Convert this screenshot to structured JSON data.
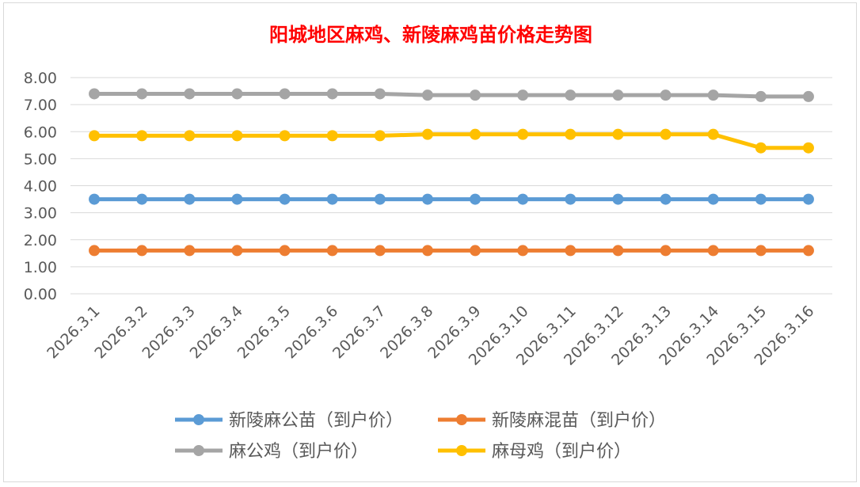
{
  "chart_data": {
    "type": "line",
    "title": "阳城地区麻鸡、新陵麻鸡苗价格走势图",
    "title_color": "#ff0000",
    "xlabel": "",
    "ylabel": "",
    "ylim": [
      0,
      8
    ],
    "y_ticks": [
      "0.00",
      "1.00",
      "2.00",
      "3.00",
      "4.00",
      "5.00",
      "6.00",
      "7.00",
      "8.00"
    ],
    "grid": true,
    "legend_position": "bottom",
    "categories": [
      "2026.3.1",
      "2026.3.2",
      "2026.3.3",
      "2026.3.4",
      "2026.3.5",
      "2026.3.6",
      "2026.3.7",
      "2026.3.8",
      "2026.3.9",
      "2026.3.10",
      "2026.3.11",
      "2026.3.12",
      "2026.3.13",
      "2026.3.14",
      "2026.3.15",
      "2026.3.16"
    ],
    "series": [
      {
        "name": "新陵麻公苗（到户价）",
        "color": "#5b9bd5",
        "values": [
          3.5,
          3.5,
          3.5,
          3.5,
          3.5,
          3.5,
          3.5,
          3.5,
          3.5,
          3.5,
          3.5,
          3.5,
          3.5,
          3.5,
          3.5,
          3.5
        ]
      },
      {
        "name": "新陵麻混苗（到户价）",
        "color": "#ed7d31",
        "values": [
          1.6,
          1.6,
          1.6,
          1.6,
          1.6,
          1.6,
          1.6,
          1.6,
          1.6,
          1.6,
          1.6,
          1.6,
          1.6,
          1.6,
          1.6,
          1.6
        ]
      },
      {
        "name": "麻公鸡（到户价）",
        "color": "#a5a5a5",
        "values": [
          7.4,
          7.4,
          7.4,
          7.4,
          7.4,
          7.4,
          7.4,
          7.35,
          7.35,
          7.35,
          7.35,
          7.35,
          7.35,
          7.35,
          7.3,
          7.3
        ]
      },
      {
        "name": "麻母鸡（到户价）",
        "color": "#ffc000",
        "values": [
          5.85,
          5.85,
          5.85,
          5.85,
          5.85,
          5.85,
          5.85,
          5.9,
          5.9,
          5.9,
          5.9,
          5.9,
          5.9,
          5.9,
          5.4,
          5.4
        ]
      }
    ]
  }
}
